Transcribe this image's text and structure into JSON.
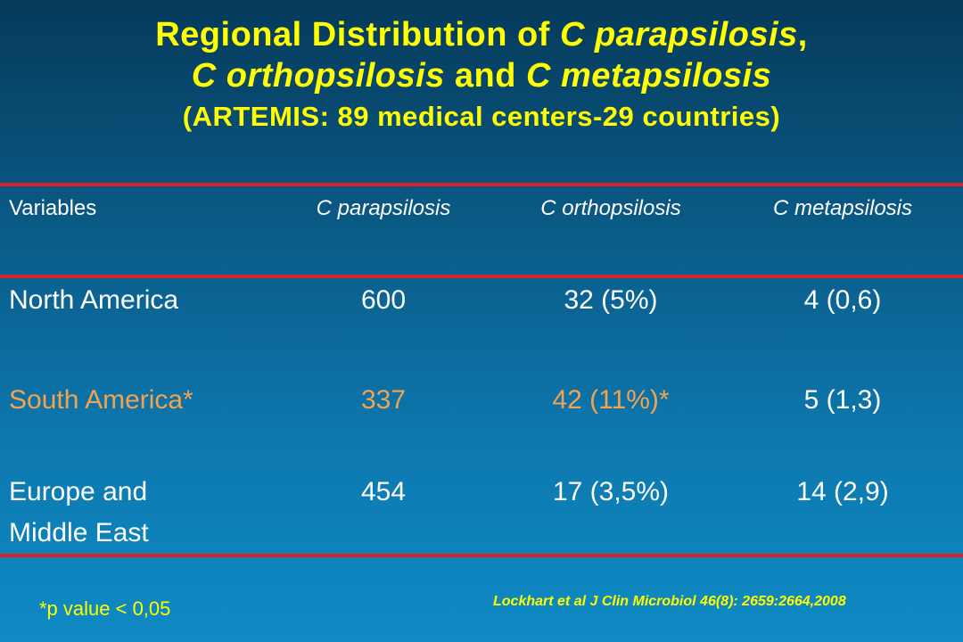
{
  "title": {
    "line1_prefix": "Regional Distribution of ",
    "line1_species": "C parapsilosis",
    "line1_suffix": ",",
    "line2_species_a": "C orthopsilosis",
    "line2_and": " and ",
    "line2_species_b": "C metapsilosis",
    "line3": "(ARTEMIS: 89 medical centers-29 countries)"
  },
  "table": {
    "headers": [
      "Variables",
      "C parapsilosis",
      "C orthopsilosis",
      "C metapsilosis"
    ],
    "rows": [
      {
        "region": "North America",
        "region_line2": "",
        "parapsilosis": "600",
        "orthopsilosis": "32 (5%)",
        "metapsilosis": "4 (0,6)",
        "highlight": false
      },
      {
        "region": "South America*",
        "region_line2": "",
        "parapsilosis": "337",
        "orthopsilosis": "42 (11%)*",
        "metapsilosis": "5 (1,3)",
        "highlight": true
      },
      {
        "region": "Europe and",
        "region_line2": "Middle East",
        "parapsilosis": "454",
        "orthopsilosis": "17 (3,5%)",
        "metapsilosis": "14 (2,9)",
        "highlight": false
      }
    ]
  },
  "footnote": "*p value < 0,05",
  "citation": "Lockhart et al J Clin Microbiol 46(8): 2659:2664,2008",
  "colors": {
    "title": "#ffff00",
    "text": "#ffffff",
    "highlight": "#f3a24f",
    "rule": "#d8202f"
  }
}
